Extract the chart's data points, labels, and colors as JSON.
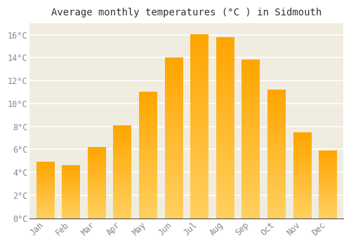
{
  "title": "Average monthly temperatures (°C ) in Sidmouth",
  "months": [
    "Jan",
    "Feb",
    "Mar",
    "Apr",
    "May",
    "Jun",
    "Jul",
    "Aug",
    "Sep",
    "Oct",
    "Nov",
    "Dec"
  ],
  "temperatures": [
    4.9,
    4.6,
    6.2,
    8.1,
    11.0,
    14.0,
    16.0,
    15.8,
    13.8,
    11.2,
    7.5,
    5.9
  ],
  "bar_color": "#FFA500",
  "bar_bottom_color": "#FFD700",
  "background_color": "#FFFFFF",
  "plot_bg_color": "#F0EDE0",
  "grid_color": "#FFFFFF",
  "text_color": "#888888",
  "title_color": "#333333",
  "ylim": [
    0,
    17
  ],
  "yticks": [
    0,
    2,
    4,
    6,
    8,
    10,
    12,
    14,
    16
  ],
  "title_fontsize": 10,
  "tick_fontsize": 8.5
}
